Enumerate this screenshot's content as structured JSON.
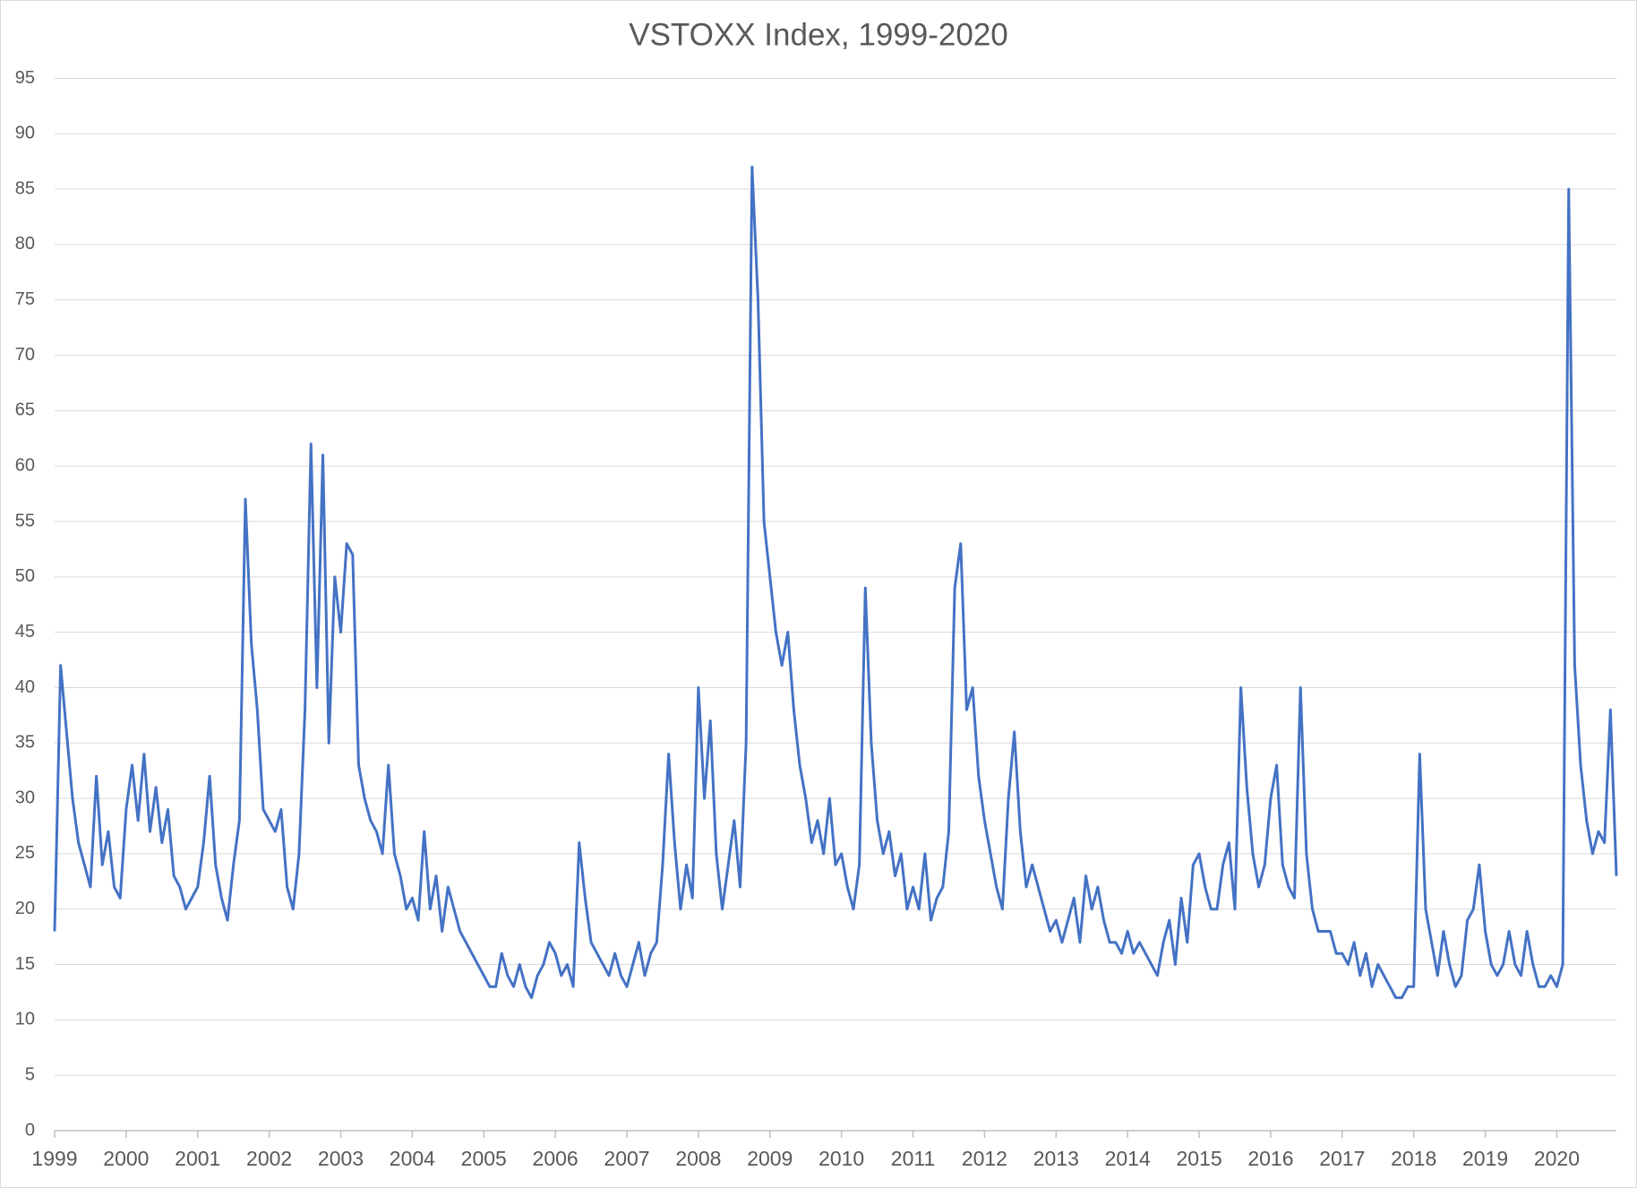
{
  "chart_data": {
    "type": "line",
    "title": "VSTOXX Index, 1999-2020",
    "categories": [
      "1999",
      null,
      null,
      null,
      null,
      null,
      null,
      null,
      null,
      null,
      null,
      null,
      "2000",
      null,
      null,
      null,
      null,
      null,
      null,
      null,
      null,
      null,
      null,
      null,
      "2001",
      null,
      null,
      null,
      null,
      null,
      null,
      null,
      null,
      null,
      null,
      null,
      "2002",
      null,
      null,
      null,
      null,
      null,
      null,
      null,
      null,
      null,
      null,
      null,
      "2003",
      null,
      null,
      null,
      null,
      null,
      null,
      null,
      null,
      null,
      null,
      null,
      "2004",
      null,
      null,
      null,
      null,
      null,
      null,
      null,
      null,
      null,
      null,
      null,
      "2005",
      null,
      null,
      null,
      null,
      null,
      null,
      null,
      null,
      null,
      null,
      null,
      "2006",
      null,
      null,
      null,
      null,
      null,
      null,
      null,
      null,
      null,
      null,
      null,
      "2007",
      null,
      null,
      null,
      null,
      null,
      null,
      null,
      null,
      null,
      null,
      null,
      "2008",
      null,
      null,
      null,
      null,
      null,
      null,
      null,
      null,
      null,
      null,
      null,
      "2009",
      null,
      null,
      null,
      null,
      null,
      null,
      null,
      null,
      null,
      null,
      null,
      "2010",
      null,
      null,
      null,
      null,
      null,
      null,
      null,
      null,
      null,
      null,
      null,
      "2011",
      null,
      null,
      null,
      null,
      null,
      null,
      null,
      null,
      null,
      null,
      null,
      "2012",
      null,
      null,
      null,
      null,
      null,
      null,
      null,
      null,
      null,
      null,
      null,
      "2013",
      null,
      null,
      null,
      null,
      null,
      null,
      null,
      null,
      null,
      null,
      null,
      "2014",
      null,
      null,
      null,
      null,
      null,
      null,
      null,
      null,
      null,
      null,
      null,
      "2015",
      null,
      null,
      null,
      null,
      null,
      null,
      null,
      null,
      null,
      null,
      null,
      "2016",
      null,
      null,
      null,
      null,
      null,
      null,
      null,
      null,
      null,
      null,
      null,
      "2017",
      null,
      null,
      null,
      null,
      null,
      null,
      null,
      null,
      null,
      null,
      null,
      "2018",
      null,
      null,
      null,
      null,
      null,
      null,
      null,
      null,
      null,
      null,
      null,
      "2019",
      null,
      null,
      null,
      null,
      null,
      null,
      null,
      null,
      null,
      null,
      null,
      "2020",
      null,
      null,
      null,
      null,
      null,
      null,
      null,
      null,
      null,
      null
    ],
    "series": [
      {
        "name": "VSTOXX",
        "color": "#4472c4",
        "values": [
          18,
          42,
          36,
          30,
          26,
          24,
          22,
          32,
          24,
          27,
          22,
          21,
          29,
          33,
          28,
          34,
          27,
          31,
          26,
          29,
          23,
          22,
          20,
          21,
          22,
          26,
          32,
          24,
          21,
          19,
          24,
          28,
          57,
          44,
          38,
          29,
          28,
          27,
          29,
          22,
          20,
          25,
          38,
          62,
          40,
          61,
          35,
          50,
          45,
          53,
          52,
          33,
          30,
          28,
          27,
          25,
          33,
          25,
          23,
          20,
          21,
          19,
          27,
          20,
          23,
          18,
          22,
          20,
          18,
          17,
          16,
          15,
          14,
          13,
          13,
          16,
          14,
          13,
          15,
          13,
          12,
          14,
          15,
          17,
          16,
          14,
          15,
          13,
          26,
          21,
          17,
          16,
          15,
          14,
          16,
          14,
          13,
          15,
          17,
          14,
          16,
          17,
          24,
          34,
          26,
          20,
          24,
          21,
          40,
          30,
          37,
          25,
          20,
          24,
          28,
          22,
          35,
          87,
          75,
          55,
          50,
          45,
          42,
          45,
          38,
          33,
          30,
          26,
          28,
          25,
          30,
          24,
          25,
          22,
          20,
          24,
          49,
          35,
          28,
          25,
          27,
          23,
          25,
          20,
          22,
          20,
          25,
          19,
          21,
          22,
          27,
          49,
          53,
          38,
          40,
          32,
          28,
          25,
          22,
          20,
          30,
          36,
          27,
          22,
          24,
          22,
          20,
          18,
          19,
          17,
          19,
          21,
          17,
          23,
          20,
          22,
          19,
          17,
          17,
          16,
          18,
          16,
          17,
          16,
          15,
          14,
          17,
          19,
          15,
          21,
          17,
          24,
          25,
          22,
          20,
          20,
          24,
          26,
          20,
          40,
          31,
          25,
          22,
          24,
          30,
          33,
          24,
          22,
          21,
          40,
          25,
          20,
          18,
          18,
          18,
          16,
          16,
          15,
          17,
          14,
          16,
          13,
          15,
          14,
          13,
          12,
          12,
          13,
          13,
          34,
          20,
          17,
          14,
          18,
          15,
          13,
          14,
          19,
          20,
          24,
          18,
          15,
          14,
          15,
          18,
          15,
          14,
          18,
          15,
          13,
          13,
          14,
          13,
          15,
          85,
          42,
          33,
          28,
          25,
          27,
          26,
          38,
          23
        ]
      }
    ],
    "ylim": [
      0,
      95
    ],
    "yticks": [
      0,
      5,
      10,
      15,
      20,
      25,
      30,
      35,
      40,
      45,
      50,
      55,
      60,
      65,
      70,
      75,
      80,
      85,
      90,
      95
    ],
    "grid": true
  }
}
